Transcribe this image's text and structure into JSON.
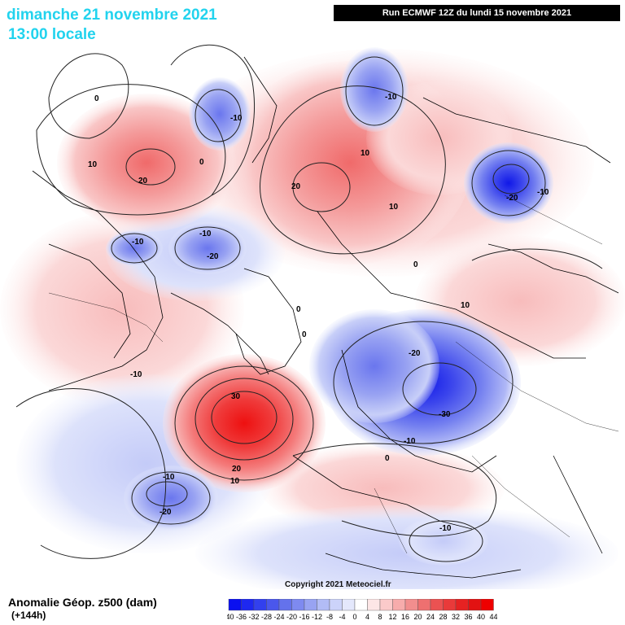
{
  "header": {
    "date_line": "dimanche 21 novembre 2021",
    "time_line": "13:00 locale",
    "run_info": "Run ECMWF 12Z du lundi 15 novembre 2021"
  },
  "footer": {
    "variable": "Anomalie Géop. z500 (dam)",
    "lead": "(+144h)",
    "copyright": "Copyright 2021 Meteociel.fr"
  },
  "legend": {
    "ticks": [
      "-40",
      "-36",
      "-32",
      "-28",
      "-24",
      "-20",
      "-16",
      "-12",
      "-8",
      "-4",
      "0",
      "4",
      "8",
      "12",
      "16",
      "20",
      "24",
      "28",
      "32",
      "36",
      "40",
      "44"
    ],
    "colors": [
      "#0a10f0",
      "#1e28f0",
      "#3240ee",
      "#4a57ec",
      "#6472ec",
      "#7e8af0",
      "#98a3f2",
      "#b2bcf6",
      "#ccd3fa",
      "#e4e8fc",
      "#ffffff",
      "#fde6e6",
      "#fbcaca",
      "#f7acac",
      "#f28e8e",
      "#ee7070",
      "#eb5252",
      "#e93a3a",
      "#e62222",
      "#e21212",
      "#ee0000"
    ]
  },
  "contour_labels": [
    {
      "text": "0",
      "name": "label-0-alaska-west"
    },
    {
      "text": "10",
      "name": "label-10-alaska"
    },
    {
      "text": "20",
      "name": "label-20-alaska"
    },
    {
      "text": "-10",
      "name": "label-minus10-beaufort"
    },
    {
      "text": "0",
      "name": "label-0-bering"
    },
    {
      "text": "-10",
      "name": "label-minus10-arctic-1"
    },
    {
      "text": "-20",
      "name": "label-minus20-arctic"
    },
    {
      "text": "-10",
      "name": "label-minus10-canada"
    },
    {
      "text": "20",
      "name": "label-20-siberia"
    },
    {
      "text": "10",
      "name": "label-10-siberia"
    },
    {
      "text": "10",
      "name": "label-10-siberia-2"
    },
    {
      "text": "-10",
      "name": "label-minus10-siberia-north"
    },
    {
      "text": "-10",
      "name": "label-minus10-east"
    },
    {
      "text": "-20",
      "name": "label-minus20-east"
    },
    {
      "text": "0",
      "name": "label-0-mongolia"
    },
    {
      "text": "10",
      "name": "label-10-asia"
    },
    {
      "text": "0",
      "name": "label-0-greenland-1"
    },
    {
      "text": "0",
      "name": "label-0-greenland-2"
    },
    {
      "text": "-20",
      "name": "label-minus20-europe"
    },
    {
      "text": "-30",
      "name": "label-minus30-europe"
    },
    {
      "text": "-10",
      "name": "label-minus10-us"
    },
    {
      "text": "30",
      "name": "label-30-atlantic"
    },
    {
      "text": "20",
      "name": "label-20-atlantic"
    },
    {
      "text": "10",
      "name": "label-10-atlantic"
    },
    {
      "text": "-10",
      "name": "label-minus10-mediterranean"
    },
    {
      "text": "0",
      "name": "label-0-mediterranean"
    },
    {
      "text": "-10",
      "name": "label-minus10-pacific"
    },
    {
      "text": "-20",
      "name": "label-minus20-pacific"
    },
    {
      "text": "-10",
      "name": "label-minus10-mideast"
    }
  ]
}
